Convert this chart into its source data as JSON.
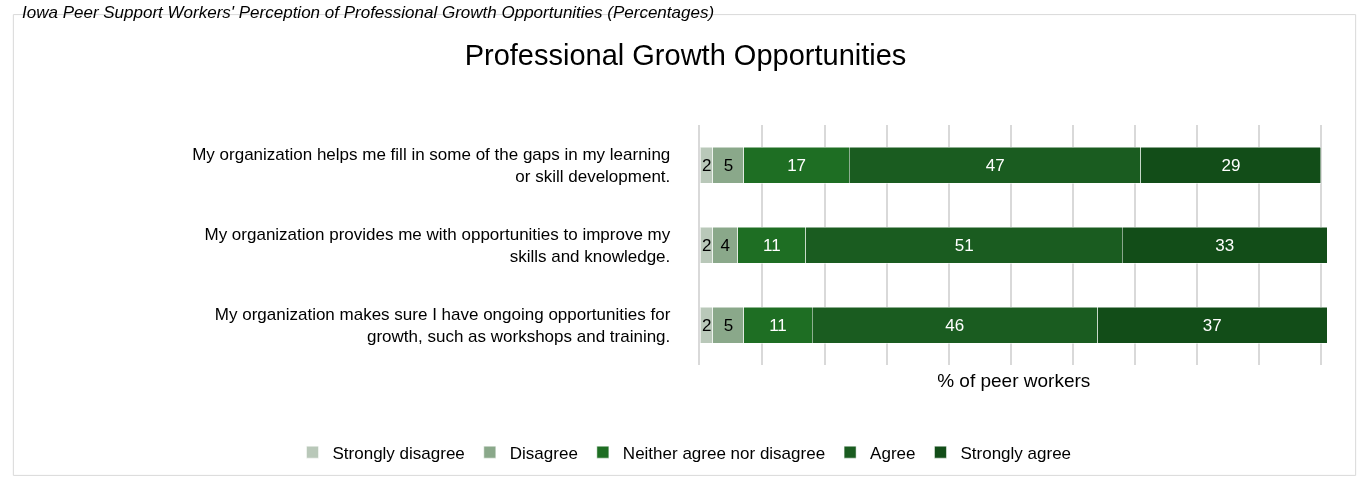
{
  "chart_data": {
    "type": "bar",
    "orientation": "horizontal",
    "stacked": true,
    "title": "Professional Growth Opportunities",
    "xlabel": "% of peer workers",
    "annotations": [
      "Iowa Peer Support Workers' Perception of Professional Growth Opportunities (Percentages)"
    ],
    "categories": [
      "My organization helps me fill in some of the gaps in my learning or skill development.",
      "My organization provides me with opportunities to improve my skills and knowledge.",
      "My organization makes sure I have ongoing opportunities for growth, such as workshops and training."
    ],
    "series": [
      {
        "name": "Strongly disagree",
        "color": "#b9c8b9",
        "values": [
          2,
          2,
          2
        ]
      },
      {
        "name": "Disagree",
        "color": "#8aa88a",
        "values": [
          5,
          4,
          5
        ]
      },
      {
        "name": "Neither agree nor disagree",
        "color": "#1e6e23",
        "values": [
          17,
          11,
          11
        ]
      },
      {
        "name": "Agree",
        "color": "#1a5c20",
        "values": [
          47,
          51,
          46
        ]
      },
      {
        "name": "Strongly agree",
        "color": "#124d18",
        "values": [
          29,
          33,
          37
        ]
      }
    ],
    "xlim": [
      0,
      101
    ],
    "xticks": [
      {
        "value": 0,
        "label": null
      },
      {
        "value": 10,
        "label": null
      },
      {
        "value": 20,
        "label": null
      },
      {
        "value": 30,
        "label": null
      },
      {
        "value": 40,
        "label": null
      },
      {
        "value": 50,
        "label": null
      },
      {
        "value": 60,
        "label": null
      },
      {
        "value": 70,
        "label": null
      },
      {
        "value": 80,
        "label": null
      },
      {
        "value": 90,
        "label": null
      },
      {
        "value": 100,
        "label": null
      }
    ],
    "tick_labels": "y",
    "grid": "x",
    "data_labels": true,
    "legend": "bottom"
  }
}
